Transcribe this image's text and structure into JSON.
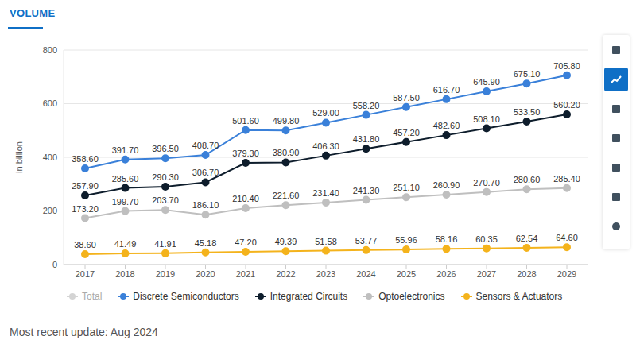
{
  "chart_data": {
    "type": "line",
    "title": "VOLUME",
    "y_label": "in billion",
    "footnote": "Most recent update: Aug 2024",
    "categories": [
      "2017",
      "2018",
      "2019",
      "2020",
      "2021",
      "2022",
      "2023",
      "2024",
      "2025",
      "2026",
      "2027",
      "2028",
      "2029"
    ],
    "ylim": [
      0,
      800
    ],
    "yticks": [
      0,
      200,
      400,
      600,
      800
    ],
    "grid": true,
    "legend": "bottom",
    "data_labels": true,
    "series": [
      {
        "name": "Total",
        "color": "#d4d4d4",
        "values": [
          null,
          null,
          null,
          null,
          null,
          null,
          null,
          null,
          null,
          null,
          null,
          null,
          null
        ]
      },
      {
        "name": "Discrete Semiconductors",
        "color": "#3a80d9",
        "values": [
          358.6,
          391.7,
          396.5,
          408.7,
          501.6,
          499.8,
          529.0,
          558.2,
          587.5,
          616.7,
          645.9,
          675.1,
          705.8
        ],
        "value_labels": [
          "358.60",
          "391.70",
          "396.50",
          "408.70",
          "501.60",
          "499.80",
          "529.00",
          "558.20",
          "587.50",
          "616.70",
          "645.90",
          "675.10",
          "705.80"
        ]
      },
      {
        "name": "Integrated Circuits",
        "color": "#0e1d2c",
        "values": [
          257.9,
          285.6,
          290.3,
          306.7,
          379.3,
          380.9,
          406.3,
          431.8,
          457.2,
          482.6,
          508.1,
          533.5,
          560.2
        ],
        "value_labels": [
          "257.90",
          "285.60",
          "290.30",
          "306.70",
          "379.30",
          "380.90",
          "406.30",
          "431.80",
          "457.20",
          "482.60",
          "508.10",
          "533.50",
          "560.20"
        ]
      },
      {
        "name": "Optoelectronics",
        "color": "#bfbfbf",
        "values": [
          173.2,
          199.7,
          203.7,
          186.1,
          210.4,
          221.6,
          231.4,
          241.3,
          251.1,
          260.9,
          270.7,
          280.6,
          285.4
        ],
        "value_labels": [
          "173.20",
          "199.70",
          "203.70",
          "186.10",
          "210.40",
          "221.60",
          "231.40",
          "241.30",
          "251.10",
          "260.90",
          "270.70",
          "280.60",
          "285.40"
        ]
      },
      {
        "name": "Sensors & Actuators",
        "color": "#f4b31c",
        "values": [
          38.6,
          41.49,
          41.91,
          45.18,
          47.2,
          49.39,
          51.58,
          53.77,
          55.96,
          58.16,
          60.35,
          62.54,
          64.6
        ],
        "value_labels": [
          "38.60",
          "41.49",
          "41.91",
          "45.18",
          "47.20",
          "49.39",
          "51.58",
          "53.77",
          "55.96",
          "58.16",
          "60.35",
          "62.54",
          "64.60"
        ]
      }
    ]
  }
}
